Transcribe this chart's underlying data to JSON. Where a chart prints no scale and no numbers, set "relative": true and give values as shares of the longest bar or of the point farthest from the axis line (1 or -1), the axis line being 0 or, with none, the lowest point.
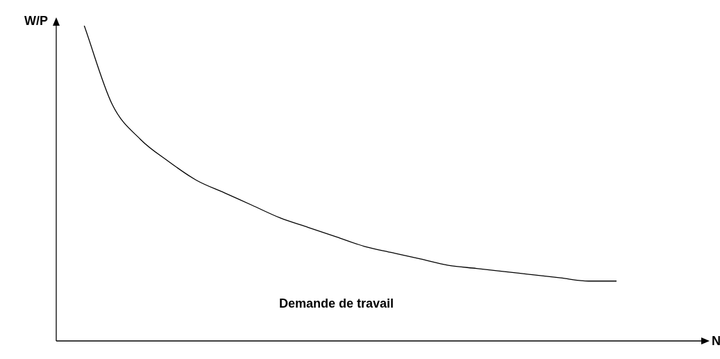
{
  "chart_data": {
    "type": "line",
    "relative": true,
    "xlabel": "N",
    "ylabel": "W/P",
    "legend": false,
    "marker": "none",
    "line_style": "solid",
    "categories": [
      null,
      null,
      null,
      null,
      null,
      null,
      null,
      null,
      null,
      null,
      null,
      null,
      null,
      null,
      null,
      null,
      null,
      null,
      null,
      null,
      null,
      null,
      null,
      null
    ],
    "series": [
      {
        "name": "Demande de travail",
        "color": "#000000",
        "values": [
          null,
          1,
          0.75,
          0.64,
          0.57,
          0.51,
          0.47,
          0.43,
          0.39,
          0.36,
          0.33,
          0.3,
          0.28,
          0.26,
          0.24,
          0.23,
          0.22,
          0.21,
          0.2,
          0.19,
          0.19,
          null,
          null,
          null
        ]
      }
    ]
  }
}
